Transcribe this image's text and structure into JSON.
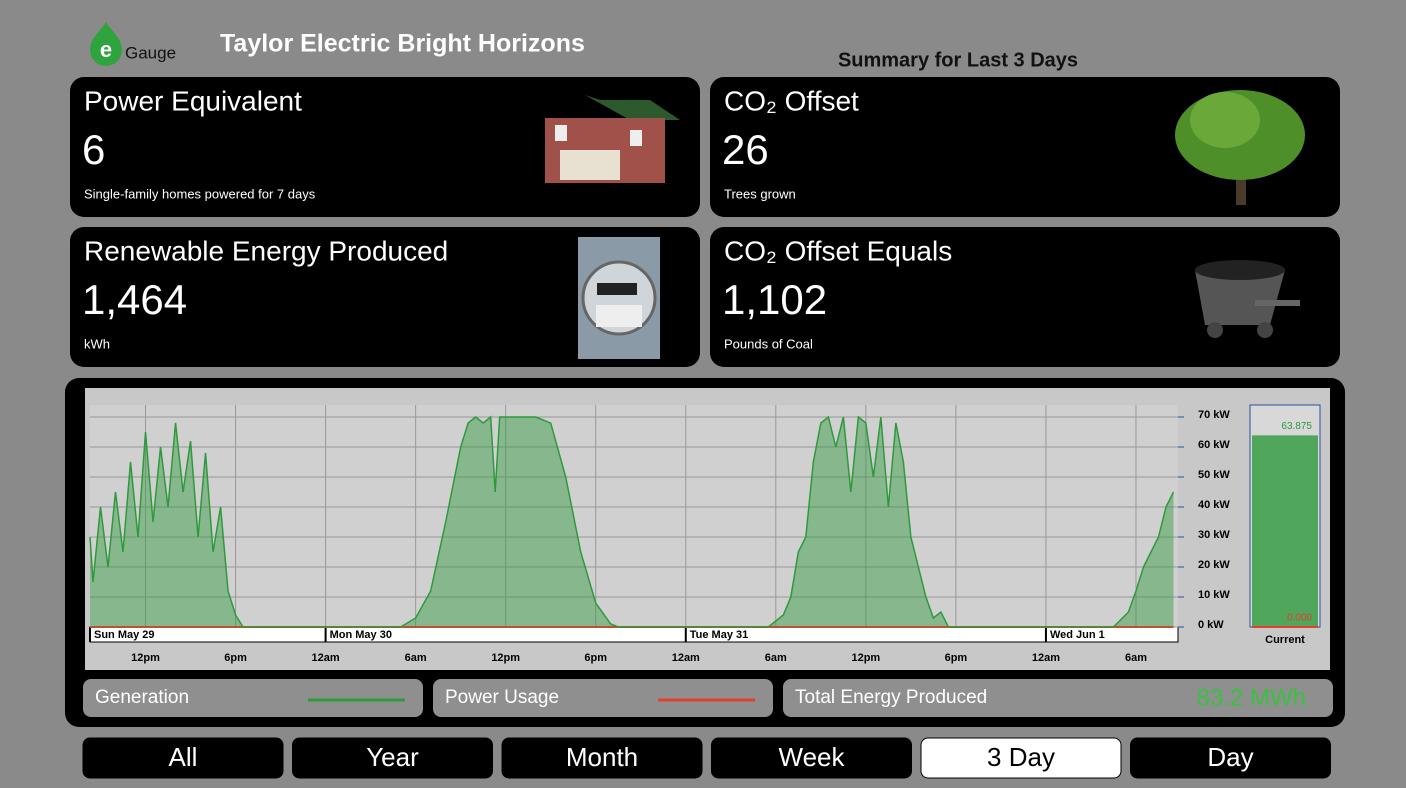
{
  "header": {
    "logo_letter": "e",
    "logo_text": "Gauge",
    "title": "Taylor Electric Bright Horizons",
    "subtitle": "Summary for Last 3 Days"
  },
  "cards": [
    {
      "title": "Power Equivalent",
      "value": "6",
      "caption": "Single-family homes powered for 7 days"
    },
    {
      "title": "CO₂ Offset",
      "value": "26",
      "caption": "Trees grown"
    },
    {
      "title": "Renewable Energy Produced",
      "value": "1,464",
      "caption": "kWh"
    },
    {
      "title": "CO₂ Offset Equals",
      "value": "1,102",
      "caption": "Pounds of Coal"
    }
  ],
  "chart_data": {
    "type": "area",
    "x": [
      8.3,
      8.5,
      9,
      9.5,
      10,
      10.5,
      11,
      11.5,
      12,
      12.5,
      13,
      13.5,
      14,
      14.5,
      15,
      15.5,
      16,
      16.5,
      17,
      17.5,
      18,
      18.5,
      19,
      28,
      29,
      30,
      31,
      32,
      33,
      33.5,
      34,
      34.5,
      35,
      35.3,
      35.6,
      36,
      37,
      38,
      39,
      40,
      41,
      42,
      43,
      43.5,
      44,
      53,
      53.5,
      54.5,
      55,
      55.5,
      56,
      56.5,
      57,
      57.5,
      58,
      58.5,
      59,
      59.5,
      60,
      60.5,
      61,
      61.5,
      62,
      62.5,
      63,
      63.5,
      64,
      64.5,
      65,
      65.5,
      66,
      76,
      76.5,
      77.5,
      78,
      78.5,
      79,
      79.5,
      80,
      80.5
    ],
    "series": [
      {
        "name": "Generation",
        "color": "#2e9a3c",
        "values": [
          30,
          15,
          40,
          20,
          45,
          25,
          55,
          30,
          65,
          35,
          60,
          40,
          68,
          45,
          62,
          30,
          58,
          25,
          40,
          12,
          4,
          0,
          0,
          0,
          0,
          3,
          12,
          35,
          60,
          68,
          70,
          68,
          70,
          45,
          70,
          70,
          70,
          70,
          68,
          50,
          25,
          8,
          1,
          0,
          0,
          0,
          0,
          4,
          10,
          25,
          30,
          55,
          68,
          70,
          60,
          70,
          45,
          70,
          68,
          50,
          70,
          40,
          68,
          55,
          30,
          20,
          10,
          3,
          5,
          0,
          0,
          0,
          0,
          5,
          12,
          20,
          25,
          30,
          40,
          45
        ]
      },
      {
        "name": "Power Usage",
        "color": "#e0402c",
        "values": [
          0,
          0,
          0,
          0,
          0,
          0,
          0,
          0,
          0,
          0,
          0,
          0,
          0,
          0,
          0,
          0,
          0,
          0,
          0,
          0,
          0,
          0,
          0,
          0,
          0,
          0,
          0,
          0,
          0,
          0,
          0,
          0,
          0,
          0,
          0,
          0,
          0,
          0,
          0,
          0,
          0,
          0,
          0,
          0,
          0,
          0,
          0,
          0,
          0,
          0,
          0,
          0,
          0,
          0,
          0,
          0,
          0,
          0,
          0,
          0,
          0,
          0,
          0,
          0,
          0,
          0,
          0,
          0,
          0,
          0,
          0,
          0,
          0,
          0,
          0,
          0,
          0,
          0,
          0,
          0
        ]
      }
    ],
    "xlim": [
      8.3,
      80.8
    ],
    "xticks": [
      {
        "value": 12,
        "label": "12pm"
      },
      {
        "value": 18,
        "label": "6pm"
      },
      {
        "value": 24,
        "label": "12am"
      },
      {
        "value": 30,
        "label": "6am"
      },
      {
        "value": 36,
        "label": "12pm"
      },
      {
        "value": 42,
        "label": "6pm"
      },
      {
        "value": 48,
        "label": "12am"
      },
      {
        "value": 54,
        "label": "6am"
      },
      {
        "value": 60,
        "label": "12pm"
      },
      {
        "value": 66,
        "label": "6pm"
      },
      {
        "value": 72,
        "label": "12am"
      },
      {
        "value": 78,
        "label": "6am"
      }
    ],
    "date_ticks": [
      {
        "value": 8.3,
        "label": "Sun May 29"
      },
      {
        "value": 24,
        "label": "Mon May 30"
      },
      {
        "value": 48,
        "label": "Tue May 31"
      },
      {
        "value": 72,
        "label": "Wed Jun 1"
      }
    ],
    "ylim": [
      0,
      74
    ],
    "yticks": [
      {
        "value": 0,
        "label": "0 kW"
      },
      {
        "value": 10,
        "label": "10 kW"
      },
      {
        "value": 20,
        "label": "20 kW"
      },
      {
        "value": 30,
        "label": "30 kW"
      },
      {
        "value": 40,
        "label": "40 kW"
      },
      {
        "value": 50,
        "label": "50 kW"
      },
      {
        "value": 60,
        "label": "60 kW"
      },
      {
        "value": 70,
        "label": "70 kW"
      }
    ],
    "grid": true,
    "current": {
      "label": "Current",
      "values": [
        63.875,
        0
      ],
      "value_labels": [
        "63.875",
        "0.000"
      ]
    },
    "total": {
      "label": "Total Energy Produced",
      "value": "83.2 MWh"
    }
  },
  "buttons": [
    {
      "label": "All"
    },
    {
      "label": "Year"
    },
    {
      "label": "Month"
    },
    {
      "label": "Week"
    },
    {
      "label": "3 Day",
      "selected": true
    },
    {
      "label": "Day"
    }
  ]
}
